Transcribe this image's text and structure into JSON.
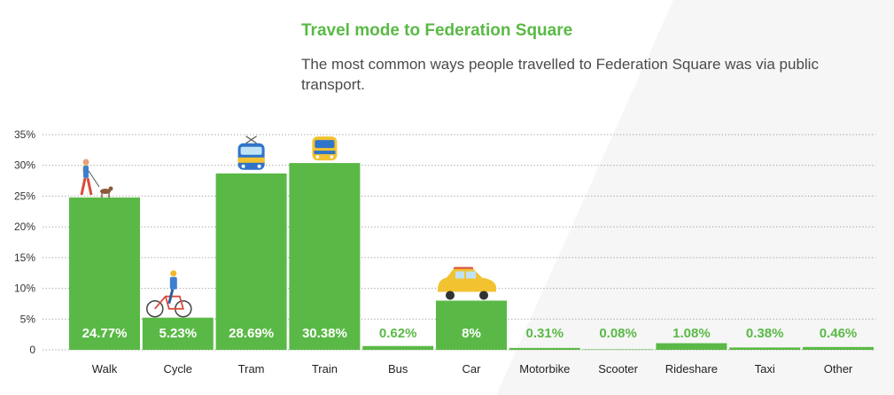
{
  "header": {
    "title": "Travel mode to Federation Square",
    "subtitle": "The most common ways people travelled to Federation Square was via public transport."
  },
  "colors": {
    "bar": "#5ab946",
    "title": "#5ab946",
    "grid": "#9a9a9a",
    "label_outside": "#5ab946"
  },
  "chart_data": {
    "type": "bar",
    "title": "Travel mode to Federation Square",
    "subtitle": "The most common ways people travelled to Federation Square was via public transport.",
    "categories": [
      "Walk",
      "Cycle",
      "Tram",
      "Train",
      "Bus",
      "Car",
      "Motorbike",
      "Scooter",
      "Rideshare",
      "Taxi",
      "Other"
    ],
    "values": [
      24.77,
      5.23,
      28.69,
      30.38,
      0.62,
      8,
      0.31,
      0.08,
      1.08,
      0.38,
      0.46
    ],
    "value_labels": [
      "24.77%",
      "5.23%",
      "28.69%",
      "30.38%",
      "0.62%",
      "8%",
      "0.31%",
      "0.08%",
      "1.08%",
      "0.38%",
      "0.46%"
    ],
    "yticks": [
      0,
      5,
      10,
      15,
      20,
      25,
      30,
      35
    ],
    "ytick_labels": [
      "0",
      "5%",
      "10%",
      "15%",
      "20%",
      "25%",
      "30%",
      "35%"
    ],
    "ylim": [
      0,
      35
    ],
    "xlabel": "",
    "ylabel": "",
    "grid": true,
    "gridlines": "horizontal-dotted",
    "legend": "none",
    "icons": [
      "walking-person-dog-icon",
      "cyclist-icon",
      "tram-icon",
      "train-icon",
      "",
      "car-icon",
      "",
      "",
      "",
      "",
      ""
    ]
  }
}
